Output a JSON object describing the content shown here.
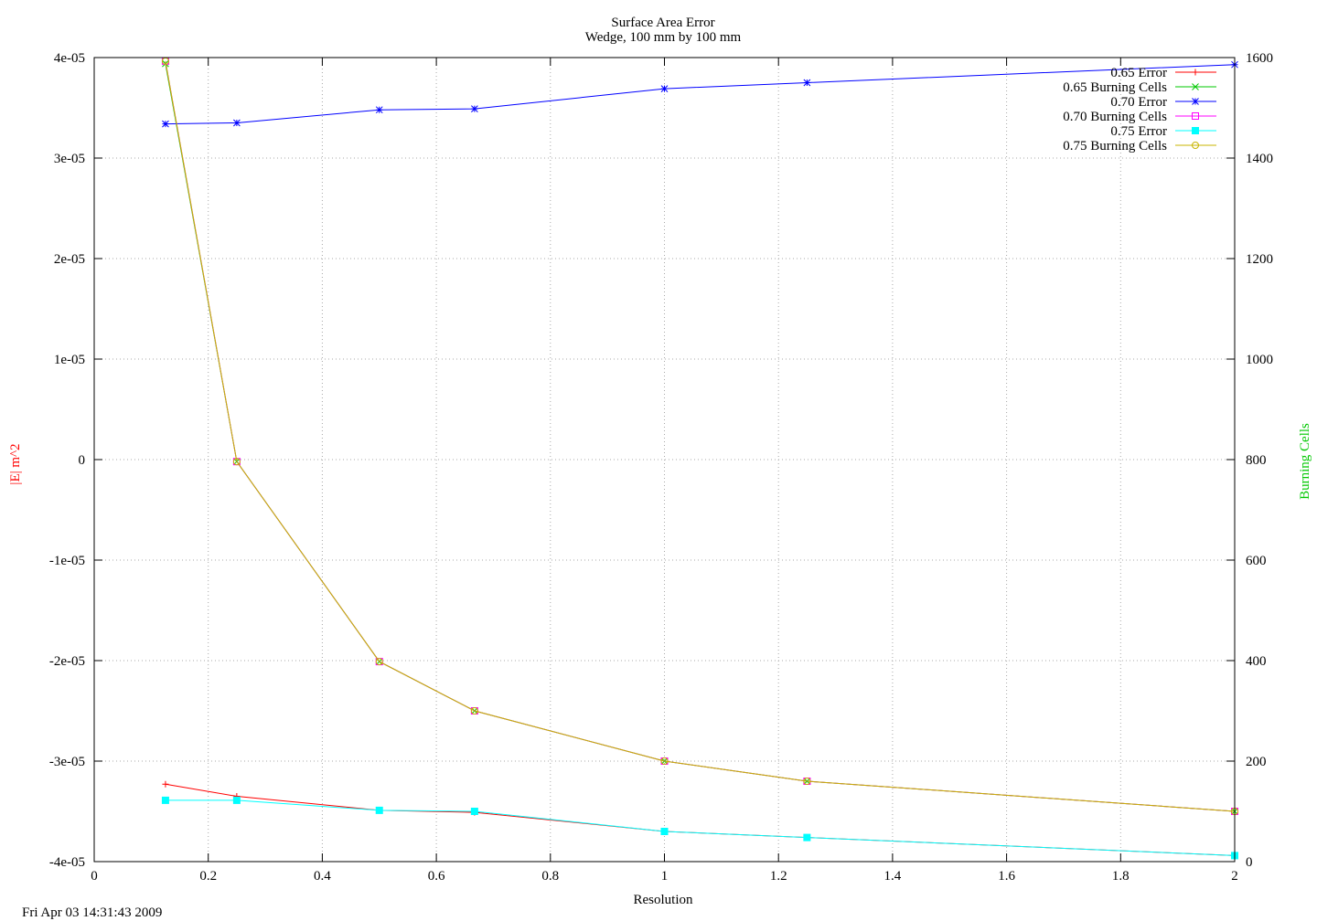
{
  "chart_data": {
    "type": "line",
    "title": "Surface Area Error",
    "subtitle": "Wedge, 100 mm by 100 mm",
    "xlabel": "Resolution",
    "ylabel": "|E| m^2",
    "ylabel_color": "#ff0000",
    "y2label": "Burning Cells",
    "y2label_color": "#00c800",
    "xlim": [
      0,
      2
    ],
    "ylim": [
      -4e-05,
      4e-05
    ],
    "y2lim": [
      0,
      1600
    ],
    "x_ticks": [
      "0",
      "0.2",
      "0.4",
      "0.6",
      "0.8",
      "1",
      "1.2",
      "1.4",
      "1.6",
      "1.8",
      "2"
    ],
    "y_ticks": [
      "4e-05",
      "3e-05",
      "2e-05",
      "1e-05",
      "0",
      "-1e-05",
      "-2e-05",
      "-3e-05",
      "-4e-05"
    ],
    "y2_ticks": [
      "1600",
      "1400",
      "1200",
      "1000",
      "800",
      "600",
      "400",
      "200",
      "0"
    ],
    "grid": true,
    "legend_position": "top-right",
    "x": [
      0.125,
      0.25,
      0.5,
      0.667,
      1,
      1.25,
      2
    ],
    "series": [
      {
        "name": "0.65 Error",
        "y_axis": "y",
        "color": "#ff0000",
        "marker": "plus",
        "values": [
          -3.23e-05,
          -3.35e-05,
          -3.49e-05,
          -3.51e-05,
          -3.7e-05,
          -3.76e-05,
          -3.94e-05
        ]
      },
      {
        "name": "0.65 Burning Cells",
        "y_axis": "y2",
        "color": "#00c800",
        "marker": "cross",
        "values": [
          1588,
          796,
          398,
          300,
          200,
          160,
          100
        ]
      },
      {
        "name": "0.70 Error",
        "y_axis": "y",
        "color": "#0000ff",
        "marker": "star",
        "values": [
          3.34e-05,
          3.35e-05,
          3.48e-05,
          3.49e-05,
          3.69e-05,
          3.75e-05,
          3.93e-05
        ]
      },
      {
        "name": "0.70 Burning Cells",
        "y_axis": "y2",
        "color": "#ff00ff",
        "marker": "square-open",
        "values": [
          1593,
          796,
          398,
          300,
          200,
          160,
          100
        ]
      },
      {
        "name": "0.75 Error",
        "y_axis": "y",
        "color": "#00ffff",
        "marker": "square-filled",
        "values": [
          -3.39e-05,
          -3.39e-05,
          -3.49e-05,
          -3.5e-05,
          -3.7e-05,
          -3.76e-05,
          -3.94e-05
        ]
      },
      {
        "name": "0.75 Burning Cells",
        "y_axis": "y2",
        "color": "#c8b400",
        "marker": "circle-open",
        "values": [
          1593,
          796,
          398,
          300,
          200,
          160,
          100
        ]
      }
    ]
  },
  "timestamp": "Fri Apr 03 14:31:43 2009"
}
